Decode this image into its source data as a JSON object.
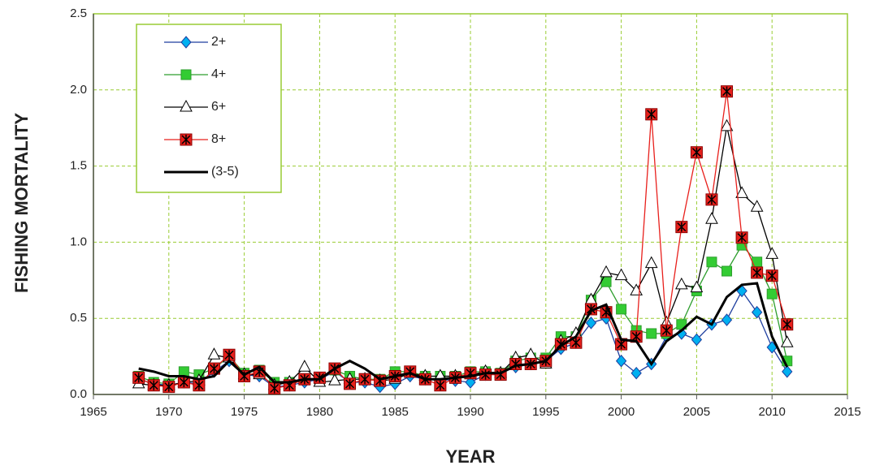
{
  "chart_data": {
    "type": "line",
    "x_label": "YEAR",
    "y_label": "FISHING MORTALITY",
    "x": [
      1968,
      1969,
      1970,
      1971,
      1972,
      1973,
      1974,
      1975,
      1976,
      1977,
      1978,
      1979,
      1980,
      1981,
      1982,
      1983,
      1984,
      1985,
      1986,
      1987,
      1988,
      1989,
      1990,
      1991,
      1992,
      1993,
      1994,
      1995,
      1996,
      1997,
      1998,
      1999,
      2000,
      2001,
      2002,
      2003,
      2004,
      2005,
      2006,
      2007,
      2008,
      2009,
      2010,
      2011
    ],
    "series": [
      {
        "name": "2+",
        "color": "#1f3f9f",
        "marker": "diamond",
        "marker_color": "#00b0f0",
        "values": [
          0.1,
          0.07,
          0.06,
          0.08,
          0.07,
          0.15,
          0.22,
          0.13,
          0.12,
          0.05,
          0.06,
          0.08,
          0.1,
          0.15,
          0.08,
          0.08,
          0.05,
          0.07,
          0.12,
          0.1,
          0.1,
          0.09,
          0.08,
          0.13,
          0.14,
          0.18,
          0.2,
          0.22,
          0.3,
          0.34,
          0.47,
          0.5,
          0.22,
          0.14,
          0.2,
          0.38,
          0.4,
          0.36,
          0.46,
          0.49,
          0.68,
          0.54,
          0.31,
          0.15
        ]
      },
      {
        "name": "4+",
        "color": "#2e9e2e",
        "marker": "square",
        "marker_color": "#33cc33",
        "values": [
          0.12,
          0.08,
          0.07,
          0.15,
          0.13,
          0.17,
          0.25,
          0.14,
          0.16,
          0.08,
          0.08,
          0.1,
          0.1,
          0.16,
          0.12,
          0.1,
          0.1,
          0.15,
          0.15,
          0.12,
          0.12,
          0.12,
          0.15,
          0.15,
          0.14,
          0.22,
          0.24,
          0.24,
          0.38,
          0.38,
          0.62,
          0.74,
          0.56,
          0.42,
          0.4,
          0.4,
          0.46,
          0.68,
          0.87,
          0.81,
          0.98,
          0.87,
          0.66,
          0.22
        ]
      },
      {
        "name": "6+",
        "color": "#000000",
        "marker": "triangle",
        "marker_color": "#ffffff",
        "values": [
          0.07,
          0.06,
          0.06,
          0.08,
          0.09,
          0.26,
          0.24,
          0.13,
          0.13,
          0.06,
          0.08,
          0.18,
          0.08,
          0.09,
          0.1,
          0.1,
          0.09,
          0.1,
          0.14,
          0.12,
          0.12,
          0.12,
          0.13,
          0.15,
          0.14,
          0.24,
          0.26,
          0.2,
          0.35,
          0.4,
          0.62,
          0.8,
          0.78,
          0.68,
          0.86,
          0.47,
          0.72,
          0.7,
          1.15,
          1.76,
          1.32,
          1.23,
          0.92,
          0.34
        ]
      },
      {
        "name": "8+",
        "color": "#e8201c",
        "marker": "star-square",
        "marker_color": "#e8201c",
        "values": [
          0.11,
          0.06,
          0.05,
          0.08,
          0.06,
          0.17,
          0.26,
          0.12,
          0.15,
          0.04,
          0.06,
          0.1,
          0.11,
          0.17,
          0.07,
          0.1,
          0.09,
          0.12,
          0.15,
          0.1,
          0.06,
          0.11,
          0.14,
          0.13,
          0.13,
          0.2,
          0.2,
          0.22,
          0.33,
          0.34,
          0.56,
          0.54,
          0.33,
          0.38,
          1.84,
          0.42,
          1.1,
          1.59,
          1.28,
          1.99,
          1.03,
          0.8,
          0.78,
          0.46
        ]
      },
      {
        "name": "(3-5)",
        "color": "#000000",
        "marker": "none",
        "values": [
          0.17,
          0.15,
          0.12,
          0.12,
          0.1,
          0.12,
          0.22,
          0.13,
          0.18,
          0.08,
          0.08,
          0.1,
          0.1,
          0.17,
          0.22,
          0.17,
          0.1,
          0.12,
          0.14,
          0.1,
          0.1,
          0.11,
          0.12,
          0.14,
          0.14,
          0.19,
          0.2,
          0.22,
          0.32,
          0.38,
          0.55,
          0.59,
          0.36,
          0.35,
          0.2,
          0.35,
          0.42,
          0.51,
          0.46,
          0.64,
          0.72,
          0.73,
          0.38,
          0.18
        ]
      }
    ],
    "xlim": [
      1965,
      2015
    ],
    "xticks": [
      1965,
      1970,
      1975,
      1980,
      1985,
      1990,
      1995,
      2000,
      2005,
      2010,
      2015
    ],
    "ylim": [
      0,
      2.5
    ],
    "yticks": [
      {
        "value": 0,
        "label": "0.0"
      },
      0.5,
      {
        "value": 1,
        "label": "1.0"
      },
      1.5,
      {
        "value": 2,
        "label": "2.0"
      },
      2.5
    ],
    "grid": true,
    "grid_color": "#99cc33",
    "legend": "upper left"
  }
}
